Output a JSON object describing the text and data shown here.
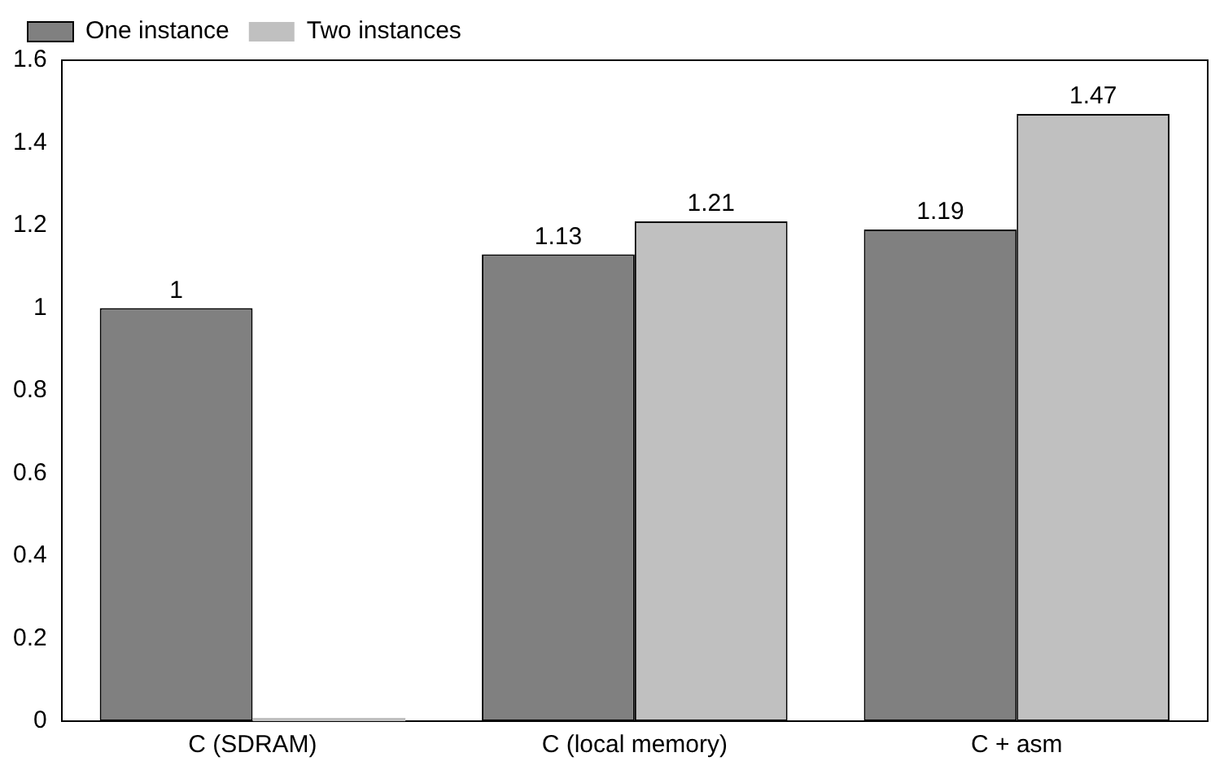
{
  "chart_data": {
    "type": "bar",
    "categories": [
      "C (SDRAM)",
      "C (local memory)",
      "C + asm"
    ],
    "series": [
      {
        "name": "One instance",
        "color": "#808080",
        "values": [
          1,
          1.13,
          1.19
        ],
        "value_labels": [
          "1",
          "1.13",
          "1.19"
        ]
      },
      {
        "name": "Two instances",
        "color": "#c0c0c0",
        "values": [
          0,
          1.21,
          1.47
        ],
        "value_labels": [
          null,
          "1.21",
          "1.47"
        ]
      }
    ],
    "ylim": [
      0,
      1.6
    ],
    "yticks": [
      0,
      0.2,
      0.4,
      0.6,
      0.8,
      1,
      1.2,
      1.4,
      1.6
    ],
    "grid": false,
    "legend": "top left"
  }
}
